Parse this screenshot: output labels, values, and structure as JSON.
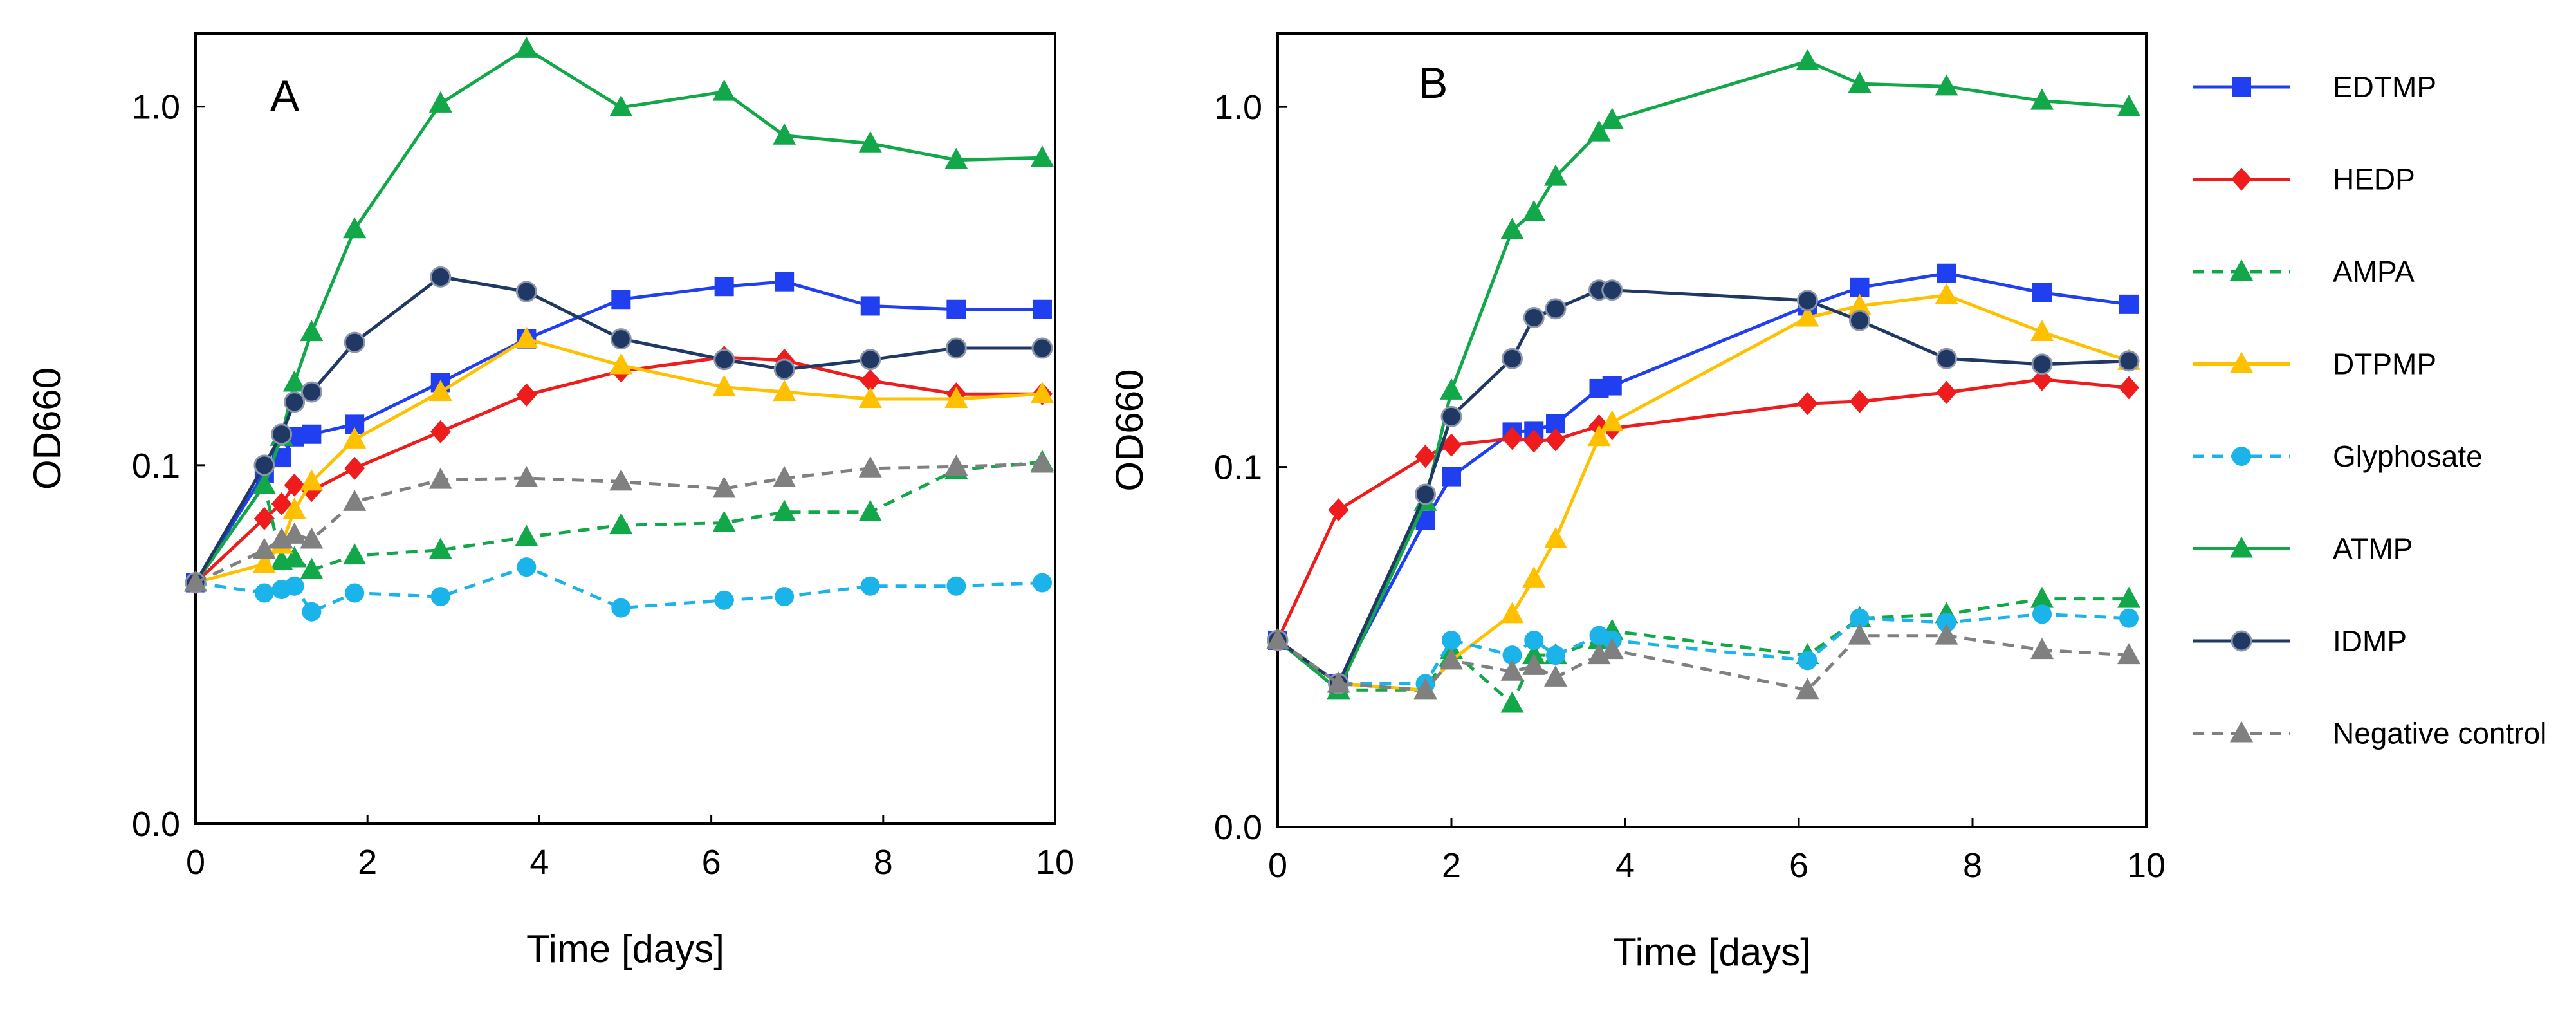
{
  "chart_data": [
    {
      "type": "line",
      "panel": "A",
      "xlabel": "Time [days]",
      "ylabel": "OD660",
      "yscale": "log",
      "xlim": [
        0,
        10
      ],
      "ylim": [
        0.01,
        1.6
      ],
      "xticks": [
        0,
        2,
        4,
        6,
        8,
        10
      ],
      "xtick_labels": [
        "0",
        "2",
        "4",
        "6",
        "8",
        "10"
      ],
      "yticks": [
        0.01,
        0.1,
        1.0
      ],
      "ytick_labels": [
        "0.0",
        "0.1",
        "1.0"
      ],
      "series": [
        {
          "name": "EDTMP",
          "x": [
            0,
            0.8,
            1.0,
            1.15,
            1.35,
            1.85,
            2.85,
            3.85,
            4.95,
            6.15,
            6.85,
            7.85,
            8.85,
            9.85
          ],
          "y": [
            0.047,
            0.095,
            0.105,
            0.12,
            0.122,
            0.13,
            0.17,
            0.225,
            0.29,
            0.315,
            0.325,
            0.278,
            0.272,
            0.272
          ]
        },
        {
          "name": "HEDP",
          "x": [
            0,
            0.8,
            1.0,
            1.15,
            1.35,
            1.85,
            2.85,
            3.85,
            4.95,
            6.15,
            6.85,
            7.85,
            8.85,
            9.85
          ],
          "y": [
            0.047,
            0.071,
            0.078,
            0.088,
            0.085,
            0.098,
            0.124,
            0.157,
            0.183,
            0.2,
            0.196,
            0.172,
            0.158,
            0.158
          ]
        },
        {
          "name": "AMPA",
          "x": [
            0,
            0.8,
            1.0,
            1.15,
            1.35,
            1.85,
            2.85,
            3.85,
            4.95,
            6.15,
            6.85,
            7.85,
            8.85,
            9.85
          ],
          "y": [
            0.047,
            0.088,
            0.054,
            0.055,
            0.051,
            0.056,
            0.058,
            0.063,
            0.068,
            0.069,
            0.074,
            0.074,
            0.097,
            0.102
          ]
        },
        {
          "name": "DTPMP",
          "x": [
            0,
            0.8,
            1.0,
            1.15,
            1.35,
            1.85,
            2.85,
            3.85,
            4.95,
            6.15,
            6.85,
            7.85,
            8.85,
            9.85
          ],
          "y": [
            0.047,
            0.053,
            0.06,
            0.075,
            0.09,
            0.118,
            0.16,
            0.225,
            0.19,
            0.165,
            0.16,
            0.153,
            0.153,
            0.158
          ]
        },
        {
          "name": "Glyphosate",
          "x": [
            0,
            0.8,
            1.0,
            1.15,
            1.35,
            1.85,
            2.85,
            3.85,
            4.95,
            6.15,
            6.85,
            7.85,
            8.85,
            9.85
          ],
          "y": [
            0.047,
            0.044,
            0.045,
            0.046,
            0.039,
            0.044,
            0.043,
            0.052,
            0.04,
            0.042,
            0.043,
            0.046,
            0.046,
            0.047
          ]
        },
        {
          "name": "ATMP",
          "x": [
            0,
            0.8,
            1.0,
            1.15,
            1.35,
            1.85,
            2.85,
            3.85,
            4.95,
            6.15,
            6.85,
            7.85,
            8.85,
            9.85
          ],
          "y": [
            0.047,
            0.088,
            0.12,
            0.17,
            0.235,
            0.455,
            1.02,
            1.45,
            0.995,
            1.1,
            0.83,
            0.79,
            0.71,
            0.72
          ]
        },
        {
          "name": "IDMP",
          "x": [
            0,
            0.8,
            1.0,
            1.15,
            1.35,
            1.85,
            2.85,
            3.85,
            4.95,
            6.15,
            6.85,
            7.85,
            8.85,
            9.85
          ],
          "y": [
            0.047,
            0.1,
            0.122,
            0.15,
            0.16,
            0.22,
            0.335,
            0.305,
            0.225,
            0.197,
            0.185,
            0.197,
            0.212,
            0.212
          ]
        },
        {
          "name": "Negative control",
          "x": [
            0,
            0.8,
            1.0,
            1.15,
            1.35,
            1.85,
            2.85,
            3.85,
            4.95,
            6.15,
            6.85,
            7.85,
            8.85,
            9.85
          ],
          "y": [
            0.047,
            0.058,
            0.062,
            0.064,
            0.062,
            0.079,
            0.091,
            0.092,
            0.09,
            0.086,
            0.092,
            0.098,
            0.099,
            0.101
          ]
        }
      ]
    },
    {
      "type": "line",
      "panel": "B",
      "xlabel": "Time [days]",
      "ylabel": "OD660",
      "yscale": "log",
      "xlim": [
        0,
        10
      ],
      "ylim": [
        0.01,
        1.6
      ],
      "xticks": [
        0,
        2,
        4,
        6,
        8,
        10
      ],
      "xtick_labels": [
        "0",
        "2",
        "4",
        "6",
        "8",
        "10"
      ],
      "yticks": [
        0.01,
        0.1,
        1.0
      ],
      "ytick_labels": [
        "0.0",
        "0.1",
        "1.0"
      ],
      "series": [
        {
          "name": "EDTMP",
          "x": [
            0,
            0.7,
            1.7,
            2.0,
            2.7,
            2.95,
            3.2,
            3.7,
            3.85,
            6.1,
            6.7,
            7.7,
            8.8,
            9.8
          ],
          "y": [
            0.033,
            0.025,
            0.071,
            0.094,
            0.125,
            0.126,
            0.132,
            0.165,
            0.168,
            0.28,
            0.315,
            0.345,
            0.305,
            0.283
          ]
        },
        {
          "name": "HEDP",
          "x": [
            0,
            0.7,
            1.7,
            2.0,
            2.7,
            2.95,
            3.2,
            3.7,
            3.85,
            6.1,
            6.7,
            7.7,
            8.8,
            9.8
          ],
          "y": [
            0.033,
            0.076,
            0.107,
            0.115,
            0.12,
            0.118,
            0.119,
            0.13,
            0.128,
            0.15,
            0.152,
            0.161,
            0.175,
            0.166
          ]
        },
        {
          "name": "AMPA",
          "x": [
            0,
            0.7,
            1.7,
            2.0,
            2.7,
            2.95,
            3.2,
            3.7,
            3.85,
            6.1,
            6.7,
            7.7,
            8.8,
            9.8
          ],
          "y": [
            0.033,
            0.024,
            0.024,
            0.031,
            0.022,
            0.03,
            0.03,
            0.033,
            0.035,
            0.03,
            0.038,
            0.039,
            0.043,
            0.043
          ]
        },
        {
          "name": "DTPMP",
          "x": [
            0,
            0.7,
            1.7,
            2.0,
            2.7,
            2.95,
            3.2,
            3.7,
            3.85,
            6.1,
            6.7,
            7.7,
            8.8,
            9.8
          ],
          "y": [
            0.033,
            0.025,
            0.024,
            0.029,
            0.039,
            0.049,
            0.063,
            0.121,
            0.133,
            0.26,
            0.28,
            0.3,
            0.237,
            0.197
          ]
        },
        {
          "name": "Glyphosate",
          "x": [
            0,
            0.7,
            1.7,
            2.0,
            2.7,
            2.95,
            3.2,
            3.7,
            3.85,
            6.1,
            6.7,
            7.7,
            8.8,
            9.8
          ],
          "y": [
            0.033,
            0.025,
            0.025,
            0.033,
            0.03,
            0.033,
            0.03,
            0.034,
            0.033,
            0.029,
            0.038,
            0.037,
            0.039,
            0.038
          ]
        },
        {
          "name": "ATMP",
          "x": [
            0,
            0.7,
            1.7,
            2.0,
            2.7,
            2.95,
            3.2,
            3.7,
            3.85,
            6.1,
            6.7,
            7.7,
            8.8,
            9.8
          ],
          "y": [
            0.033,
            0.024,
            0.08,
            0.163,
            0.455,
            0.51,
            0.64,
            0.85,
            0.92,
            1.34,
            1.16,
            1.14,
            1.04,
            1.0
          ]
        },
        {
          "name": "IDMP",
          "x": [
            0,
            0.7,
            1.7,
            2.0,
            2.7,
            2.95,
            3.2,
            3.7,
            3.85,
            6.1,
            6.7,
            7.7,
            8.8,
            9.8
          ],
          "y": [
            0.033,
            0.025,
            0.084,
            0.138,
            0.2,
            0.26,
            0.275,
            0.31,
            0.31,
            0.29,
            0.255,
            0.2,
            0.193,
            0.197
          ]
        },
        {
          "name": "Negative control",
          "x": [
            0,
            0.7,
            1.7,
            2.0,
            2.7,
            2.95,
            3.2,
            3.7,
            3.85,
            6.1,
            6.7,
            7.7,
            8.8,
            9.8
          ],
          "y": [
            0.033,
            0.025,
            0.024,
            0.029,
            0.027,
            0.028,
            0.026,
            0.03,
            0.031,
            0.024,
            0.034,
            0.034,
            0.031,
            0.03
          ]
        }
      ]
    }
  ],
  "legend": {
    "placement": "right",
    "entries": [
      {
        "name": "EDTMP",
        "color": "#1f3ff0",
        "marker": "square",
        "dash": "solid"
      },
      {
        "name": "HEDP",
        "color": "#ee1c1c",
        "marker": "diamond",
        "dash": "solid"
      },
      {
        "name": "AMPA",
        "color": "#12a84a",
        "marker": "triangle",
        "dash": "dashed"
      },
      {
        "name": "DTPMP",
        "color": "#ffc000",
        "marker": "triangle",
        "dash": "solid"
      },
      {
        "name": "Glyphosate",
        "color": "#1ab4eb",
        "marker": "circle",
        "dash": "dashed"
      },
      {
        "name": "ATMP",
        "color": "#12a84a",
        "marker": "triangle",
        "dash": "solid"
      },
      {
        "name": "IDMP",
        "color": "#1f3864",
        "marker": "circle-outlined",
        "dash": "solid"
      },
      {
        "name": "Negative control",
        "color": "#808080",
        "marker": "triangle",
        "dash": "dashed"
      }
    ]
  }
}
